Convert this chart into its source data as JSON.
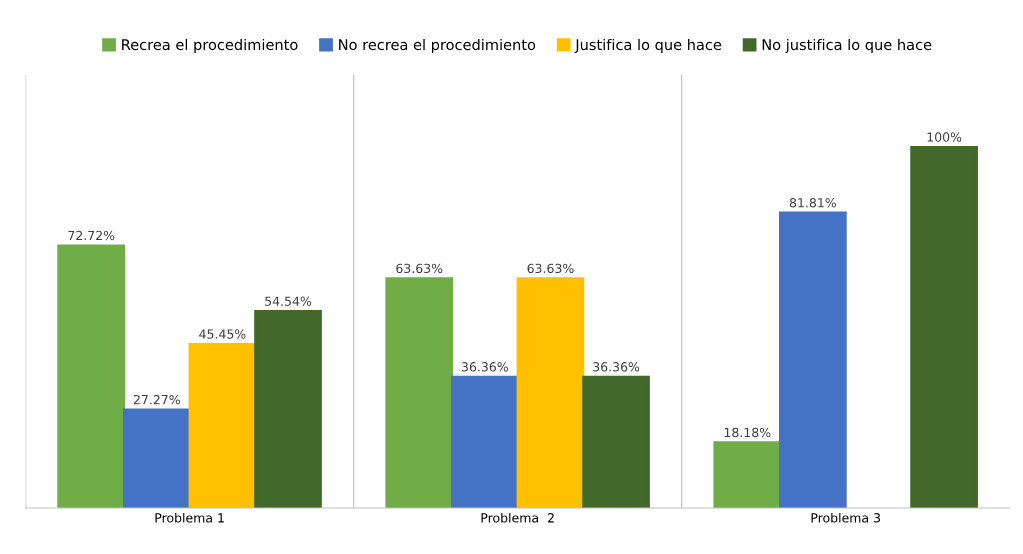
{
  "chart_data": {
    "type": "bar",
    "categories": [
      "Problema 1",
      "Problema  2",
      "Problema 3"
    ],
    "series": [
      {
        "name": "Recrea el procedimiento",
        "color": "#70ad47",
        "values": [
          72.72,
          63.63,
          18.18
        ],
        "value_labels": [
          "72.72%",
          "63.63%",
          "18.18%"
        ]
      },
      {
        "name": "No recrea el procedimiento",
        "color": "#4472c4",
        "values": [
          27.27,
          36.36,
          81.81
        ],
        "value_labels": [
          "27.27%",
          "36.36%",
          "81.81%"
        ]
      },
      {
        "name": "Justifica lo que hace",
        "color": "#ffc000",
        "values": [
          45.45,
          63.63,
          null
        ],
        "value_labels": [
          "45.45%",
          "63.63%",
          null
        ]
      },
      {
        "name": "No justifica lo que hace",
        "color": "#43682b",
        "values": [
          54.54,
          36.36,
          100
        ],
        "value_labels": [
          "54.54%",
          "36.36%",
          "100%"
        ]
      }
    ],
    "ylim": [
      0,
      120
    ],
    "tick_labels": "x",
    "grid": "x",
    "legend": "top"
  }
}
